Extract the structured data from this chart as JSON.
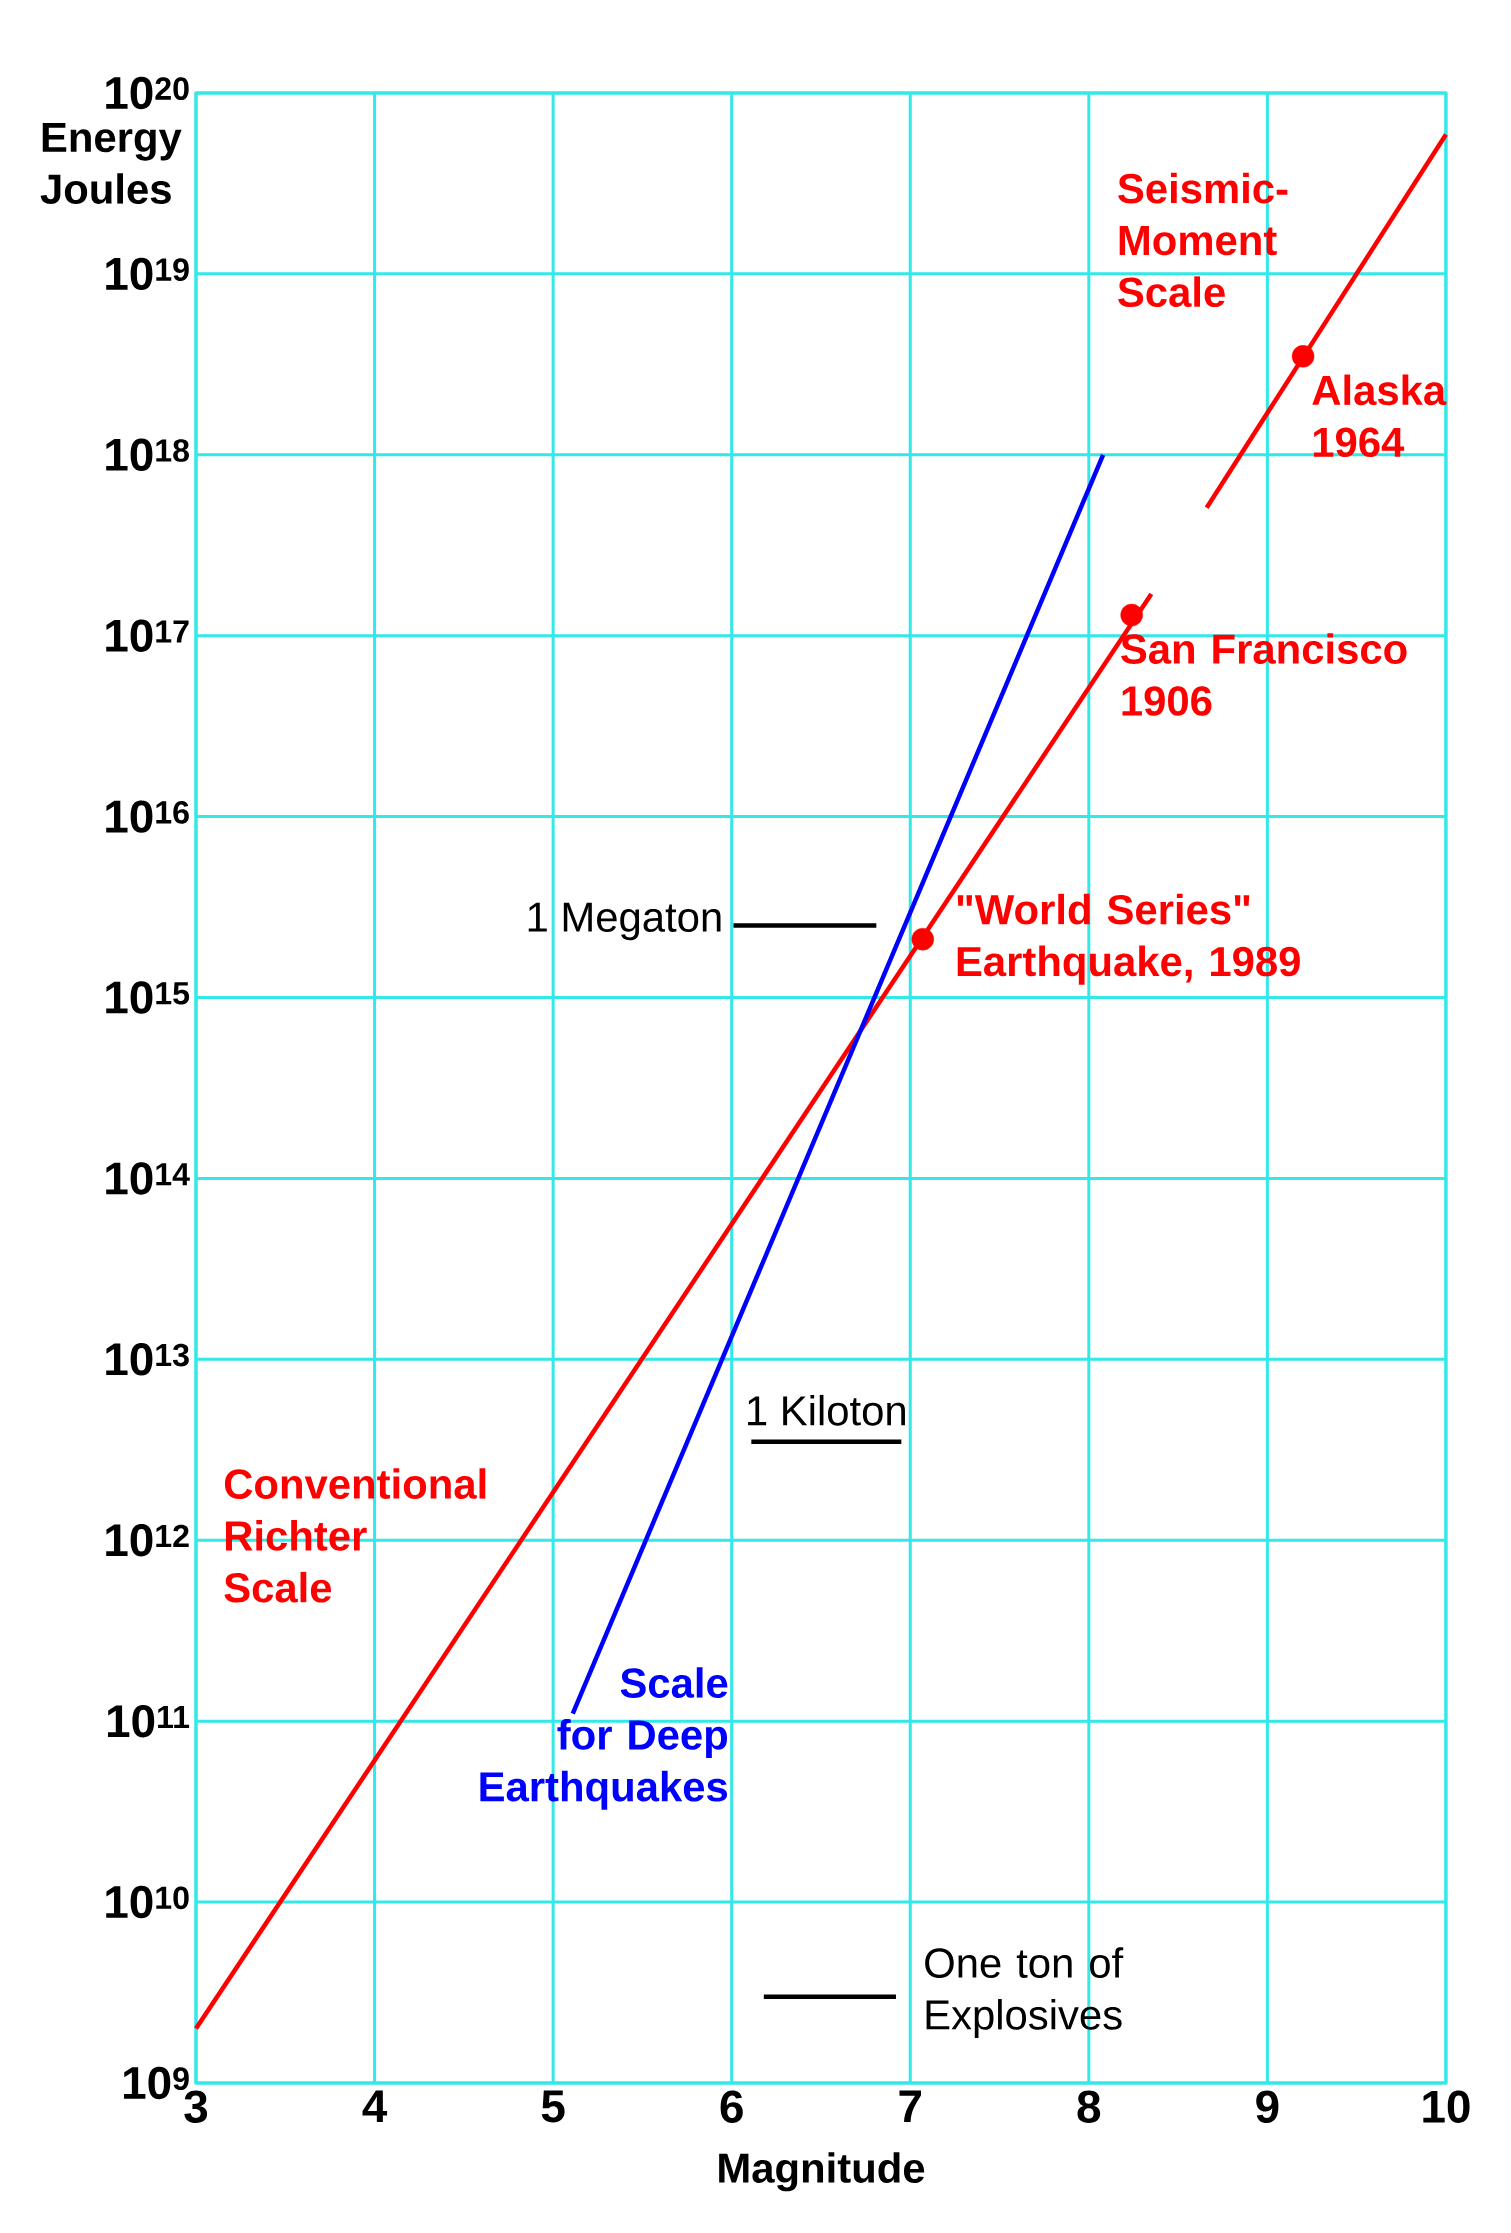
{
  "chart_data": {
    "type": "line",
    "xlabel": "Magnitude",
    "ylabel": "Energy Joules",
    "log": "y",
    "grid": true,
    "marker": "none",
    "xlim": [
      3,
      10
    ],
    "xticks": [
      3,
      4,
      5,
      6,
      7,
      8,
      9,
      10
    ],
    "ylim": [
      1000000000.0,
      1e+20
    ],
    "yticks": [
      {
        "value": 1000000000.0,
        "label": "10$^{9}$"
      },
      {
        "value": 10000000000.0,
        "label": "10$^{10}$"
      },
      {
        "value": 100000000000.0,
        "label": "10$^{11}$"
      },
      {
        "value": 1000000000000.0,
        "label": "10$^{12}$"
      },
      {
        "value": 10000000000000.0,
        "label": "10$^{13}$"
      },
      {
        "value": 100000000000000.0,
        "label": "10$^{14}$"
      },
      {
        "value": 1000000000000000.0,
        "label": "10$^{15}$"
      },
      {
        "value": 1e+16,
        "label": "10$^{16}$"
      },
      {
        "value": 1e+17,
        "label": "10$^{17}$"
      },
      {
        "value": 1e+18,
        "label": "10$^{18}$"
      },
      {
        "value": 1e+19,
        "label": "10$^{19}$"
      },
      {
        "value": 1e+20,
        "label": "10$^{20}$"
      }
    ],
    "series": [
      {
        "name": "Conventional Richter Scale",
        "color": "#ff0000",
        "x": [
          3,
          8.35
        ],
        "values": [
          2000000000.0,
          1.7e+17
        ]
      },
      {
        "name": "Scale for Deep Earthquakes",
        "color": "#0000ff",
        "x": [
          5.11,
          8.08
        ],
        "values": [
          110000000000.0,
          1e+18
        ]
      },
      {
        "name": "Seismic-Moment Scale",
        "color": "#ff0000",
        "x": [
          8.66,
          10
        ],
        "values": [
          5.1e+17,
          5.9e+19
        ]
      },
      {
        "name": "1 Megaton",
        "color": "#000000",
        "x": [
          6.01,
          6.81
        ],
        "values": [
          2500000000000000.0,
          2500000000000000.0
        ]
      },
      {
        "name": "1 Kiloton",
        "color": "#000000",
        "x": [
          6.11,
          6.95
        ],
        "values": [
          3500000000000.0,
          3500000000000.0
        ]
      },
      {
        "name": "One ton of Explosives",
        "color": "#000000",
        "x": [
          6.18,
          6.92
        ],
        "values": [
          3000000000.0,
          3000000000.0
        ]
      },
      {
        "type": "scatter",
        "marker": "circle",
        "color": "#ff0000",
        "x": [
          9.2,
          8.24,
          7.07
        ],
        "values": [
          3.5e+18,
          1.3e+17,
          2100000000000000.0
        ]
      }
    ],
    "annotations": [
      {
        "text": "Alaska 1964",
        "x": 9.2,
        "y": 3.5e+18
      },
      {
        "text": "San Francisco 1906",
        "x": 8.24,
        "y": 1.3e+17
      },
      {
        "text": "\"World Series\" Earthquake, 1989",
        "x": 7.07,
        "y": 2100000000000000.0
      }
    ]
  }
}
